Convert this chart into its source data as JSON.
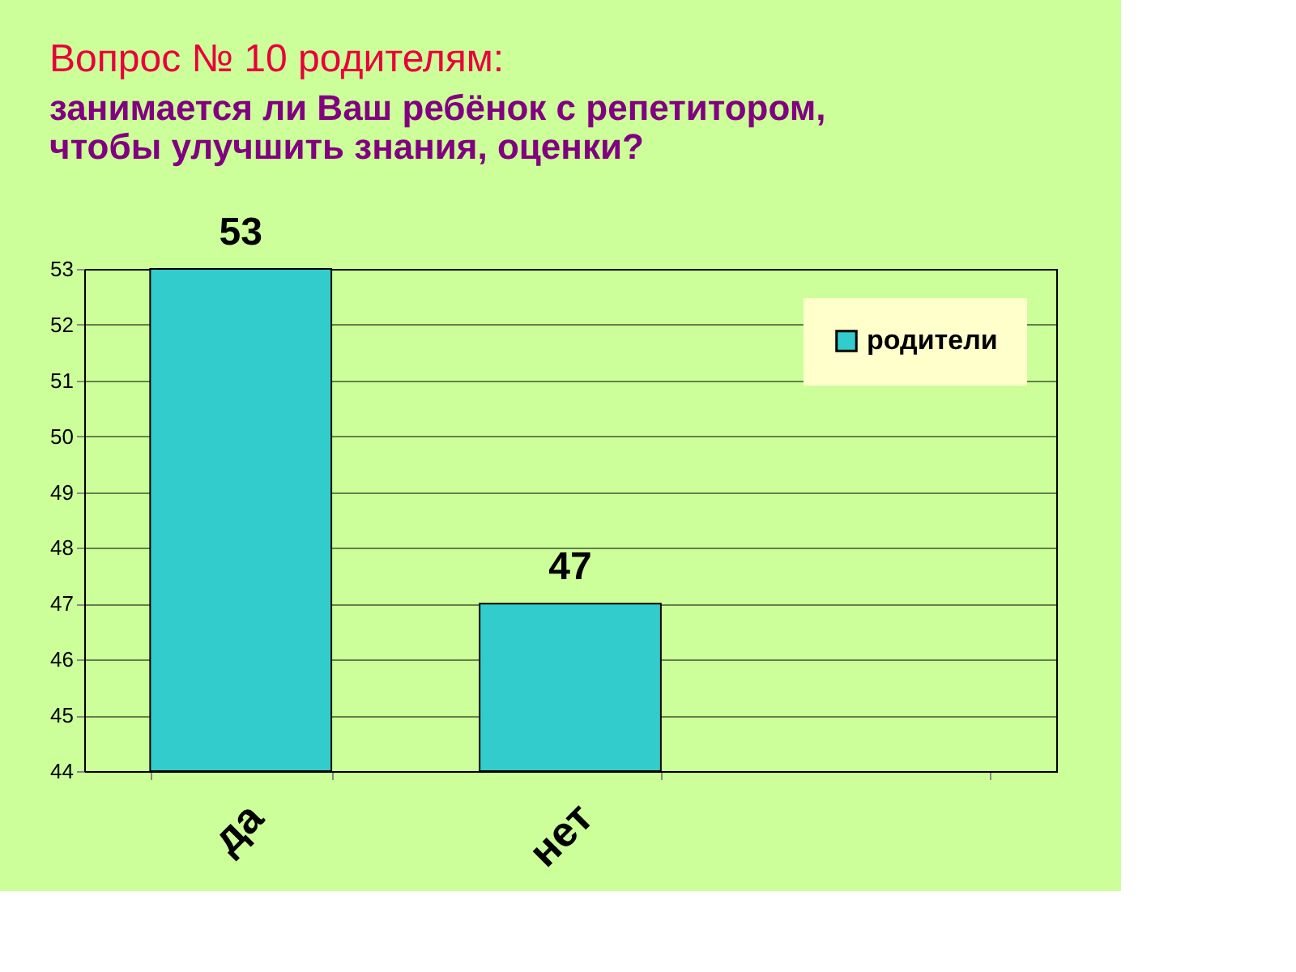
{
  "chart_data": {
    "type": "bar",
    "title": "Вопрос № 10 родителям:",
    "subtitle": "занимается ли Ваш ребёнок с репетитором, чтобы улучшить  знания, оценки?",
    "categories": [
      "да",
      "нет",
      null
    ],
    "series": [
      {
        "name": "родители",
        "color": "#33cccc",
        "values": [
          53,
          47,
          null
        ]
      }
    ],
    "ylim": [
      44,
      53
    ],
    "yticks": [
      44,
      45,
      46,
      47,
      48,
      49,
      50,
      51,
      52,
      53
    ],
    "grid": "y",
    "legend": "top right",
    "data_labels": true
  }
}
